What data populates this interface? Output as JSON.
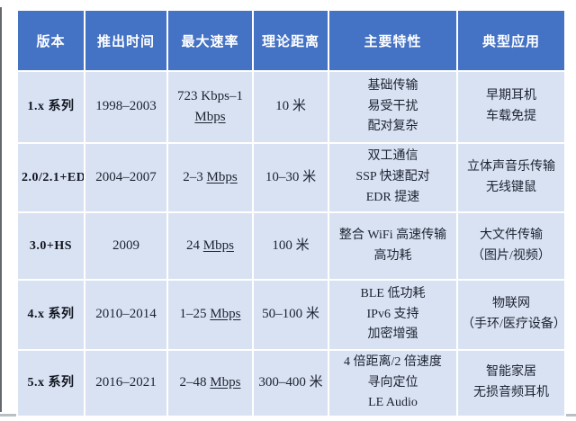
{
  "colors": {
    "header_bg": "#4472c4",
    "header_text": "#ffffff",
    "cell_bg": "#d9e2f3",
    "grid": "#ffffff",
    "body_text": "#1c2330"
  },
  "table": {
    "columns": [
      "版本",
      "推出时间",
      "最大速率",
      "理论距离",
      "主要特性",
      "典型应用"
    ],
    "rows": [
      {
        "version": "1.x 系列",
        "period": "1998–2003",
        "speed_value": "723 Kbps–1",
        "speed_unit": "Mbps",
        "distance": "10 米",
        "features": "基础传输\n易受干扰\n配对复杂",
        "applications": "早期耳机\n车载免提"
      },
      {
        "version": "2.0/2.1+ED",
        "period": "2004–2007",
        "speed_value": "2–3",
        "speed_unit": "Mbps",
        "distance": "10–30 米",
        "features": "双工通信\nSSP 快速配对\nEDR 提速",
        "applications": "立体声音乐传输\n无线键鼠"
      },
      {
        "version": "3.0+HS",
        "period": "2009",
        "speed_value": "24",
        "speed_unit": "Mbps",
        "distance": "100 米",
        "features": "整合 WiFi 高速传输\n高功耗",
        "applications": "大文件传输\n（图片/视频）"
      },
      {
        "version": "4.x 系列",
        "period": "2010–2014",
        "speed_value": "1–25",
        "speed_unit": "Mbps",
        "distance": "50–100 米",
        "features": "BLE 低功耗\nIPv6 支持\n加密增强",
        "applications": "物联网\n（手环/医疗设备）"
      },
      {
        "version": "5.x 系列",
        "period": "2016–2021",
        "speed_value": "2–48",
        "speed_unit": "Mbps",
        "distance": "300–400 米",
        "features": "4 倍距离/2 倍速度\n寻向定位\nLE Audio",
        "applications": "智能家居\n无损音频耳机"
      }
    ]
  }
}
